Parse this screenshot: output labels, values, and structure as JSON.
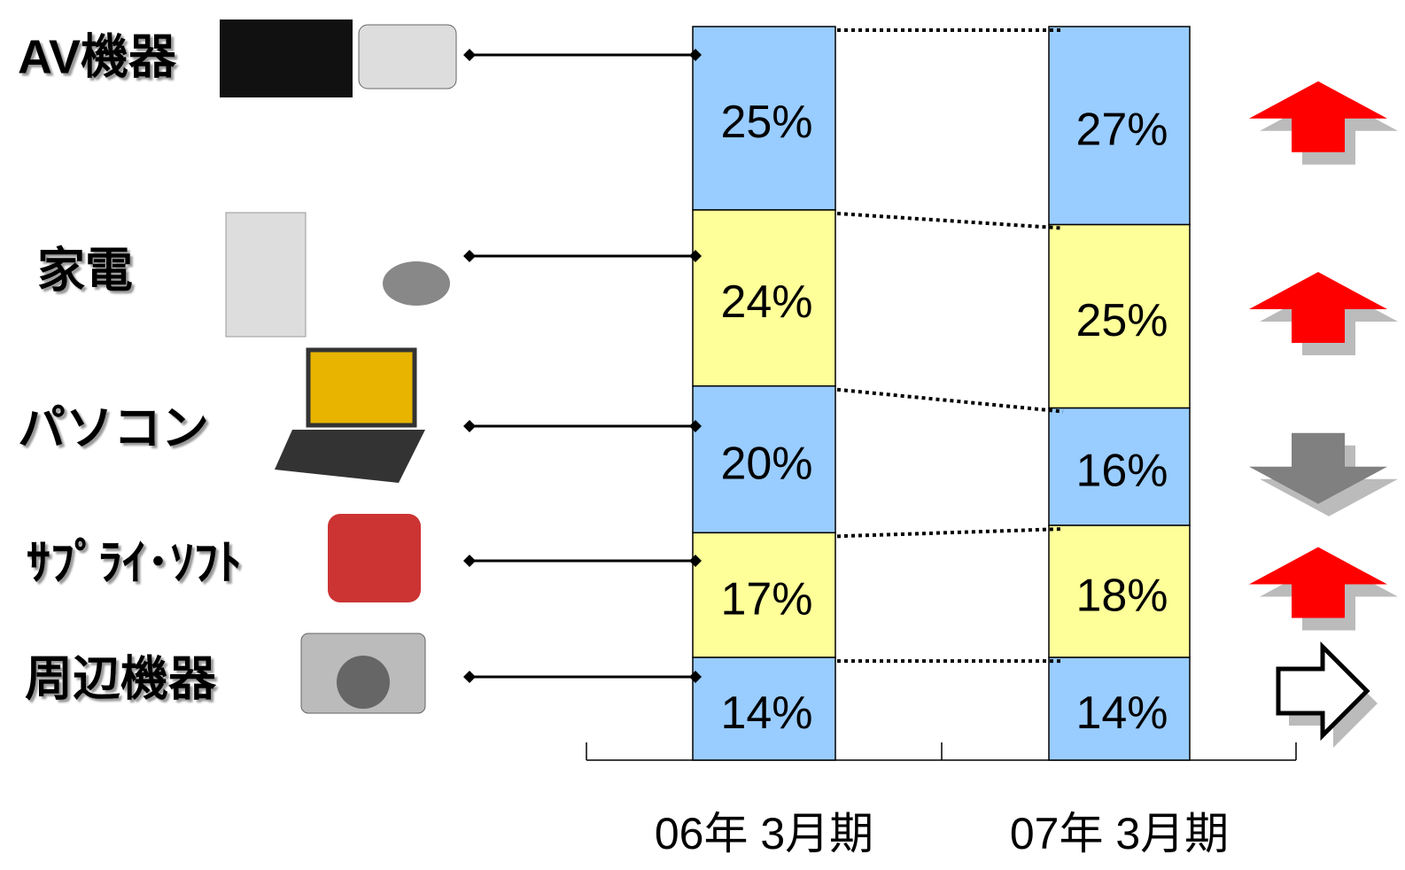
{
  "chart_data": {
    "type": "stacked-bar",
    "categories": [
      "06年 3月期",
      "07年 3月期"
    ],
    "series": [
      {
        "name": "AV機器",
        "color": "#99ccff",
        "values": [
          25,
          27
        ],
        "value_labels": [
          "25%",
          "27%"
        ]
      },
      {
        "name": "家電",
        "color": "#ffff99",
        "values": [
          24,
          25
        ],
        "value_labels": [
          "24%",
          "25%"
        ]
      },
      {
        "name": "パソコン",
        "color": "#99ccff",
        "values": [
          20,
          16
        ],
        "value_labels": [
          "20%",
          "16%"
        ]
      },
      {
        "name": "ｻﾌﾟﾗｲ･ｿﾌﾄ",
        "color": "#ffff99",
        "values": [
          17,
          18
        ],
        "value_labels": [
          "17%",
          "18%"
        ]
      },
      {
        "name": "周辺機器",
        "color": "#99ccff",
        "values": [
          14,
          14
        ],
        "value_labels": [
          "14%",
          "14%"
        ]
      }
    ]
  }
}
